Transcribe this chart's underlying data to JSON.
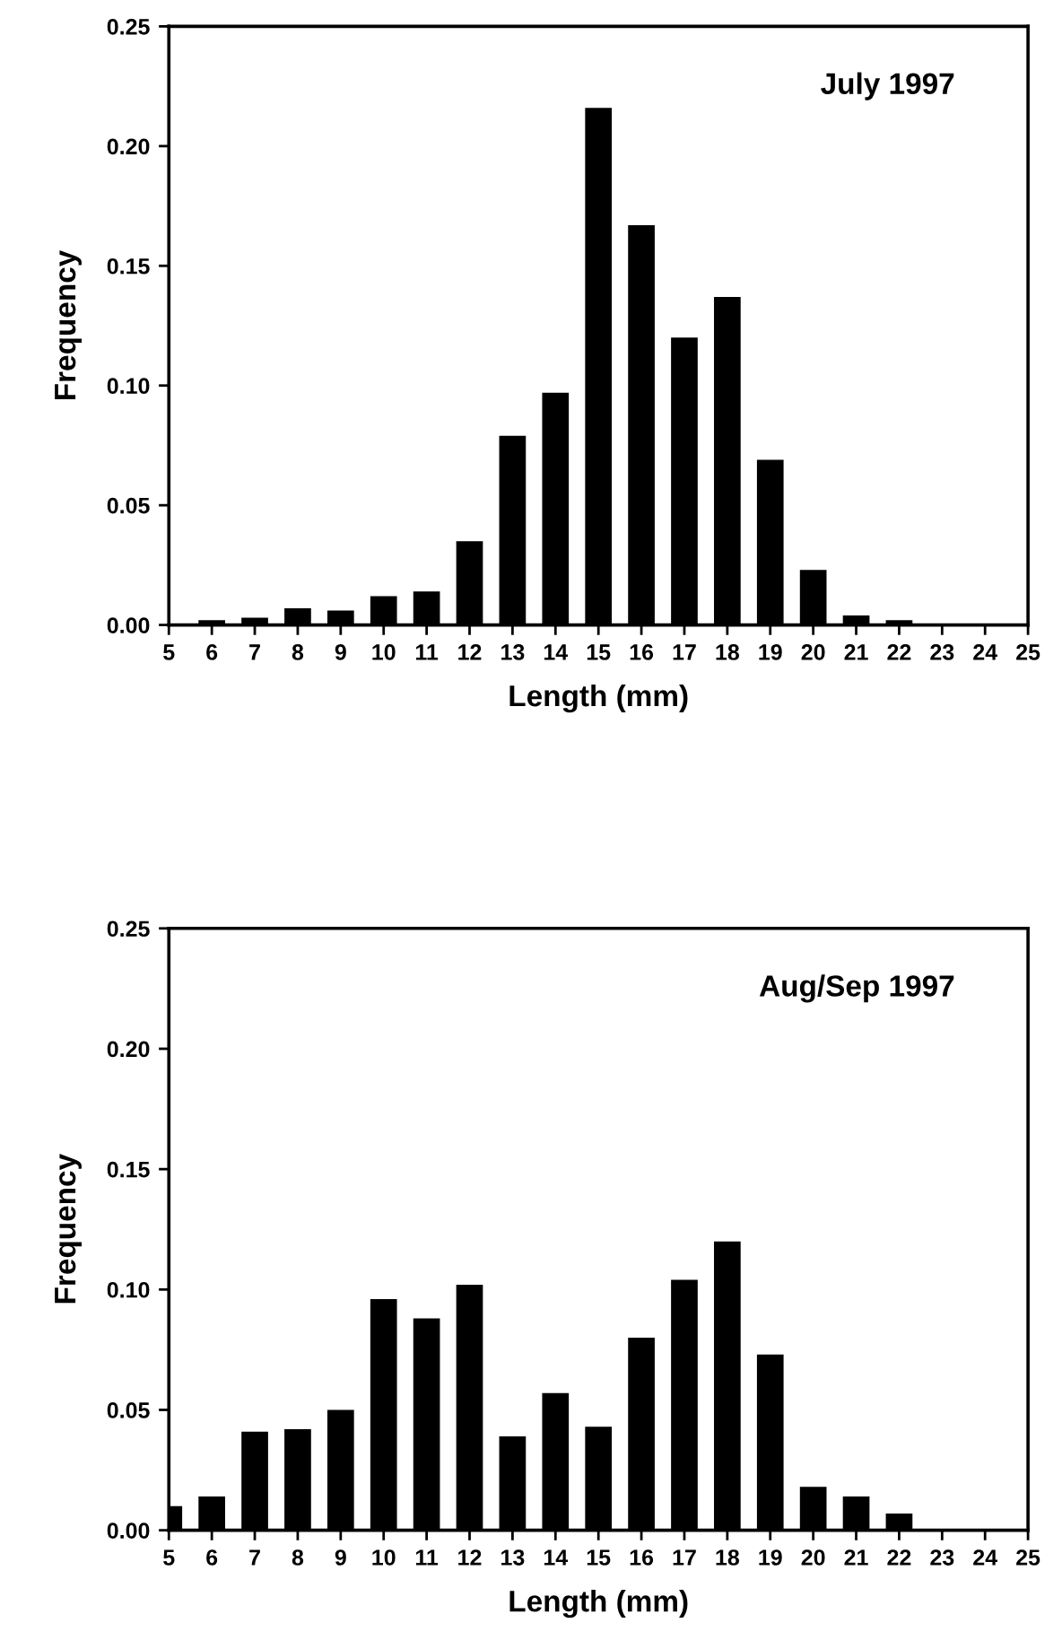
{
  "chart_data": [
    {
      "type": "bar",
      "xlabel": "Length (mm)",
      "ylabel": "Frequency",
      "annotations": [
        "July 1997"
      ],
      "x": [
        5,
        6,
        7,
        8,
        9,
        10,
        11,
        12,
        13,
        14,
        15,
        16,
        17,
        18,
        19,
        20,
        21,
        22,
        23,
        24,
        25
      ],
      "values": [
        0,
        0.002,
        0.003,
        0.007,
        0.006,
        0.012,
        0.014,
        0.035,
        0.079,
        0.097,
        0.216,
        0.167,
        0.12,
        0.137,
        0.069,
        0.023,
        0.004,
        0.002,
        0,
        0,
        0
      ],
      "color": "#000000",
      "xlim": [
        5,
        25
      ],
      "xticks": [
        5,
        6,
        7,
        8,
        9,
        10,
        11,
        12,
        13,
        14,
        15,
        16,
        17,
        18,
        19,
        20,
        21,
        22,
        23,
        24,
        25
      ],
      "ylim": [
        0,
        0.25
      ],
      "yticks": [
        {
          "value": 0,
          "label": "0.00"
        },
        {
          "value": 0.05,
          "label": "0.05"
        },
        {
          "value": 0.1,
          "label": "0.10"
        },
        {
          "value": 0.15,
          "label": "0.15"
        },
        {
          "value": 0.2,
          "label": "0.20"
        },
        {
          "value": 0.25,
          "label": "0.25"
        }
      ],
      "grid": false,
      "legend": false
    },
    {
      "type": "bar",
      "xlabel": "Length (mm)",
      "ylabel": "Frequency",
      "annotations": [
        "Aug/Sep 1997"
      ],
      "x": [
        5,
        6,
        7,
        8,
        9,
        10,
        11,
        12,
        13,
        14,
        15,
        16,
        17,
        18,
        19,
        20,
        21,
        22,
        23,
        24,
        25
      ],
      "values": [
        0.01,
        0.014,
        0.041,
        0.042,
        0.05,
        0.096,
        0.088,
        0.102,
        0.039,
        0.057,
        0.043,
        0.08,
        0.104,
        0.12,
        0.073,
        0.018,
        0.014,
        0.007,
        0,
        0,
        0
      ],
      "color": "#000000",
      "xlim": [
        5,
        25
      ],
      "xticks": [
        5,
        6,
        7,
        8,
        9,
        10,
        11,
        12,
        13,
        14,
        15,
        16,
        17,
        18,
        19,
        20,
        21,
        22,
        23,
        24,
        25
      ],
      "ylim": [
        0,
        0.25
      ],
      "yticks": [
        {
          "value": 0,
          "label": "0.00"
        },
        {
          "value": 0.05,
          "label": "0.05"
        },
        {
          "value": 0.1,
          "label": "0.10"
        },
        {
          "value": 0.15,
          "label": "0.15"
        },
        {
          "value": 0.2,
          "label": "0.20"
        },
        {
          "value": 0.25,
          "label": "0.25"
        }
      ],
      "grid": false,
      "legend": false
    }
  ]
}
